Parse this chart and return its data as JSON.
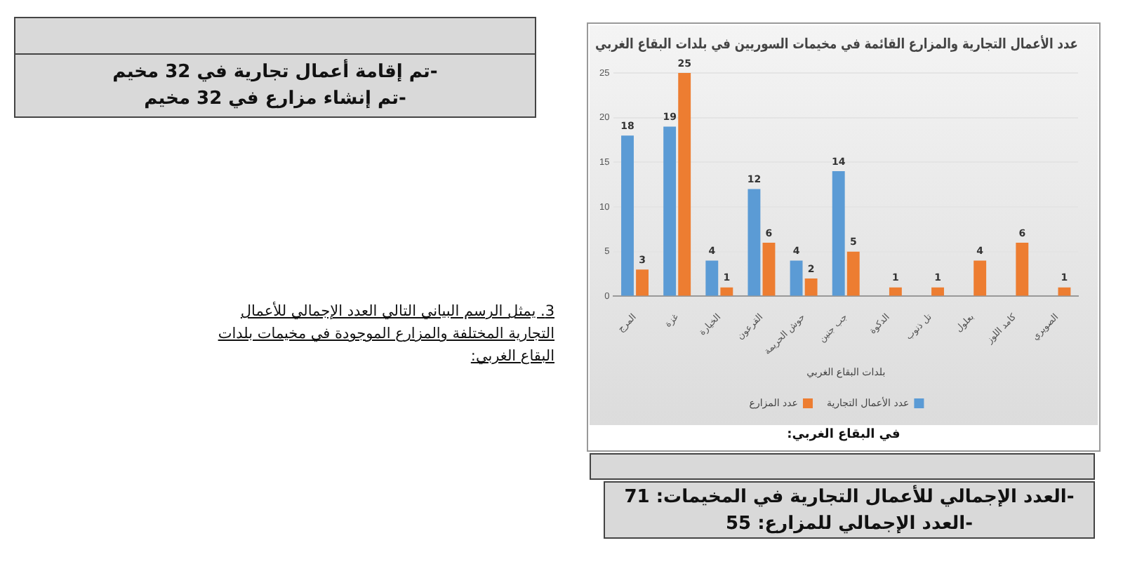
{
  "chart_data": {
    "type": "bar",
    "title": "عدد الأعمال التجارية والمزارع القائمة في مخيمات السوريين في بلدات البقاع الغربي",
    "xlabel": "بلدات البقاع الغربي",
    "categories": [
      "المرج",
      "غزة",
      "الخيارة",
      "القرعون",
      "حوش الحريمة",
      "جب جنين",
      "الدكوة",
      "تل ذنوب",
      "بعلول",
      "كامد اللوز",
      "الصويري"
    ],
    "series": [
      {
        "name": "عدد الأعمال التجارية",
        "color": "#5b9bd5",
        "values": [
          18,
          19,
          4,
          12,
          4,
          14,
          null,
          null,
          null,
          null,
          null
        ]
      },
      {
        "name": "عدد المزارع",
        "color": "#ed7d31",
        "values": [
          3,
          25,
          1,
          6,
          2,
          5,
          1,
          1,
          4,
          6,
          1
        ]
      }
    ],
    "ylim": [
      0,
      25
    ],
    "yticks": [
      0,
      5,
      10,
      15,
      20,
      25
    ],
    "grid": "y",
    "legend": "bottom",
    "data_labels": true,
    "annotations": [
      "-تم إقامة أعمال تجارية في 32 مخيم",
      "-تم إنشاء مزارع في 32 مخيم",
      "3. يمثل الرسم البياني التالي العدد الإجمالي للأعمال التجارية المختلفة والمزارع الموجودة في مخيمات بلدات البقاع الغربي:",
      "في البقاع الغربي:",
      "-العدد الإجمالي للأعمال التجارية في المخيمات: 71",
      "-العدد الإجمالي للمزارع: 55"
    ]
  }
}
